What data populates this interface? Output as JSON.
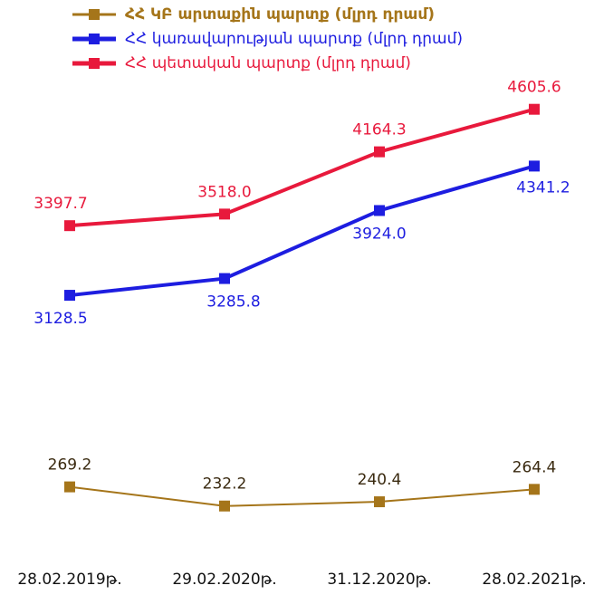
{
  "chart_data": {
    "type": "line",
    "categories": [
      "28.02.2019թ.",
      "29.02.2020թ.",
      "31.12.2020թ.",
      "28.02.2021թ."
    ],
    "series": [
      {
        "name": "ՀՀ ԿԲ արտաքին պարտք (մլրդ դրամ)",
        "color": "#a5751a",
        "values": [
          269.2,
          232.2,
          240.4,
          264.4
        ],
        "value_labels": [
          "269.2",
          "232.2",
          "240.4",
          "264.4"
        ],
        "ylim": [
          160,
          1035
        ]
      },
      {
        "name": "ՀՀ կառավարության պարտք (մլրդ դրամ)",
        "color": "#1d1de0",
        "values": [
          3128.5,
          3285.8,
          3924.0,
          4341.2
        ],
        "value_labels": [
          "3128.5",
          "3285.8",
          "3924.0",
          "4341.2"
        ],
        "ylim": [
          800,
          5050
        ]
      },
      {
        "name": "ՀՀ պետական պարտք (մլրդ դրամ)",
        "color": "#e8193c",
        "values": [
          3397.7,
          3518.0,
          4164.3,
          4605.6
        ],
        "value_labels": [
          "3397.7",
          "3518.0",
          "4164.3",
          "4605.6"
        ],
        "ylim": [
          100,
          4800
        ]
      }
    ]
  }
}
